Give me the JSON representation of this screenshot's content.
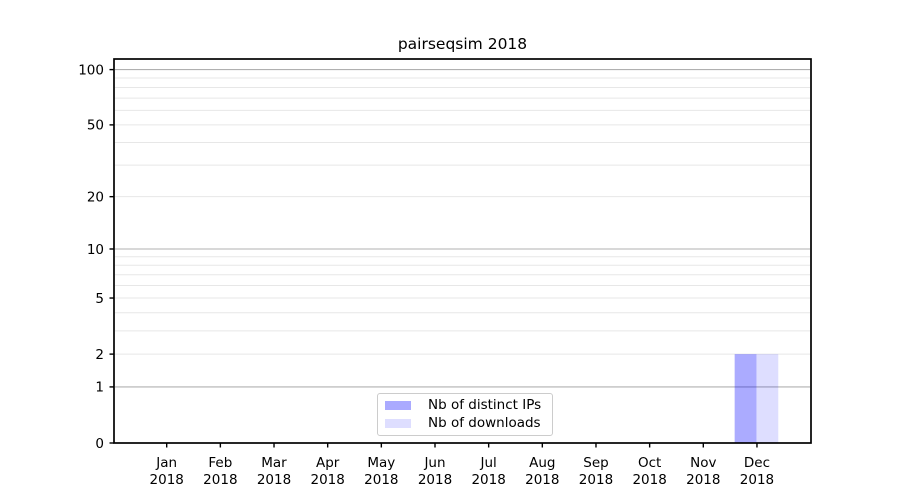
{
  "chart_data": {
    "type": "bar",
    "title": "pairseqsim 2018",
    "categories": [
      "Jan 2018",
      "Feb 2018",
      "Mar 2018",
      "Apr 2018",
      "May 2018",
      "Jun 2018",
      "Jul 2018",
      "Aug 2018",
      "Sep 2018",
      "Oct 2018",
      "Nov 2018",
      "Dec 2018"
    ],
    "series": [
      {
        "name": "Nb of distinct IPs",
        "color": "#aaaaff",
        "base_color": "#0000ff",
        "opacity": 0.33,
        "values": [
          0,
          0,
          0,
          0,
          0,
          0,
          0,
          0,
          0,
          0,
          0,
          2
        ]
      },
      {
        "name": "Nb of downloads",
        "color": "#dedeff",
        "base_color": "#0000ff",
        "opacity": 0.13,
        "values": [
          0,
          0,
          0,
          0,
          0,
          0,
          0,
          0,
          0,
          0,
          0,
          2
        ]
      }
    ],
    "xlabel": "",
    "ylabel": "",
    "y_scale": "log1p",
    "ylim": [
      0,
      115
    ],
    "y_ticks": [
      0,
      1,
      2,
      5,
      10,
      20,
      50,
      100
    ],
    "y_major_gridlines": [
      1,
      10,
      100
    ],
    "y_minor_gridlines": [
      2,
      3,
      4,
      5,
      6,
      7,
      8,
      9,
      20,
      30,
      40,
      50,
      60,
      70,
      80,
      90
    ],
    "grid": "horizontal only",
    "legend_position": "lower center"
  },
  "colors": {
    "background": "#ffffff",
    "spine": "#000000",
    "tick": "#000000",
    "text": "#000000",
    "grid_major": "#b0b0b0",
    "grid_minor": "#e7e7e7",
    "legend_border": "#cccccc"
  }
}
